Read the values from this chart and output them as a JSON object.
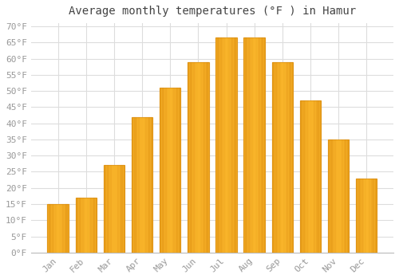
{
  "months": [
    "Jan",
    "Feb",
    "Mar",
    "Apr",
    "May",
    "Jun",
    "Jul",
    "Aug",
    "Sep",
    "Oct",
    "Nov",
    "Dec"
  ],
  "values": [
    15,
    17,
    27,
    42,
    51,
    59,
    66.5,
    66.5,
    59,
    47,
    35,
    23
  ],
  "bar_color": "#FDB92E",
  "bar_edge_color": "#E8A020",
  "title": "Average monthly temperatures (°F ) in Hamur",
  "ylim_min": 0,
  "ylim_max": 70,
  "ytick_step": 5,
  "background_color": "#ffffff",
  "grid_color": "#dddddd",
  "title_fontsize": 10,
  "tick_fontsize": 8,
  "tick_label_color": "#999999",
  "font_family": "monospace",
  "figwidth": 5.0,
  "figheight": 3.5,
  "dpi": 100
}
